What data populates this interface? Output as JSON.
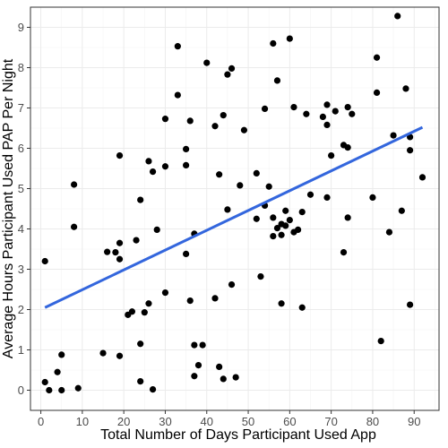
{
  "chart_data": {
    "type": "scatter",
    "title": "",
    "xlabel": "Total Number of Days Participant Used App",
    "ylabel": "Average Hours Participant Used PAP Per Night",
    "xlim": [
      -2.5,
      96
    ],
    "ylim": [
      -0.5,
      9.5
    ],
    "x_ticks": [
      0,
      10,
      20,
      30,
      40,
      50,
      60,
      70,
      80,
      90
    ],
    "y_ticks": [
      0,
      1,
      2,
      3,
      4,
      5,
      6,
      7,
      8,
      9
    ],
    "grid": true,
    "point_color": "#000000",
    "line_color": "#3366dd",
    "points": [
      [
        1,
        3.2
      ],
      [
        1,
        0.2
      ],
      [
        2,
        0
      ],
      [
        4,
        0.45
      ],
      [
        5,
        0.88
      ],
      [
        5,
        0
      ],
      [
        8,
        5.1
      ],
      [
        8,
        4.05
      ],
      [
        9,
        0.05
      ],
      [
        15,
        0.92
      ],
      [
        16,
        3.43
      ],
      [
        18,
        3.42
      ],
      [
        19,
        3.65
      ],
      [
        19,
        3.25
      ],
      [
        19,
        5.82
      ],
      [
        19,
        0.85
      ],
      [
        21,
        1.87
      ],
      [
        22,
        1.95
      ],
      [
        23,
        3.72
      ],
      [
        24,
        4.72
      ],
      [
        24,
        1.15
      ],
      [
        24,
        0.22
      ],
      [
        25,
        1.93
      ],
      [
        26,
        2.15
      ],
      [
        26,
        5.68
      ],
      [
        27,
        5.42
      ],
      [
        27,
        0.02
      ],
      [
        28,
        3.98
      ],
      [
        30,
        6.73
      ],
      [
        30,
        5.55
      ],
      [
        30,
        2.42
      ],
      [
        33,
        8.53
      ],
      [
        33,
        7.32
      ],
      [
        35,
        5.98
      ],
      [
        35,
        5.58
      ],
      [
        35,
        3.38
      ],
      [
        36,
        6.68
      ],
      [
        36,
        2.22
      ],
      [
        37,
        1.12
      ],
      [
        37,
        3.88
      ],
      [
        37,
        0.35
      ],
      [
        38,
        0.62
      ],
      [
        39,
        1.12
      ],
      [
        40,
        8.12
      ],
      [
        42,
        6.55
      ],
      [
        42,
        2.28
      ],
      [
        43,
        5.35
      ],
      [
        43,
        0.58
      ],
      [
        44,
        6.82
      ],
      [
        44,
        0.28
      ],
      [
        45,
        7.83
      ],
      [
        45,
        4.48
      ],
      [
        46,
        7.98
      ],
      [
        46,
        2.62
      ],
      [
        47,
        0.32
      ],
      [
        48,
        5.08
      ],
      [
        49,
        6.45
      ],
      [
        52,
        5.38
      ],
      [
        52,
        4.25
      ],
      [
        53,
        2.82
      ],
      [
        54,
        6.98
      ],
      [
        54,
        4.58
      ],
      [
        55,
        5.05
      ],
      [
        56,
        8.6
      ],
      [
        56,
        4.28
      ],
      [
        56,
        3.82
      ],
      [
        57,
        7.68
      ],
      [
        57,
        4.02
      ],
      [
        58,
        4.12
      ],
      [
        58,
        3.85
      ],
      [
        58,
        2.15
      ],
      [
        59,
        4.45
      ],
      [
        59,
        4.08
      ],
      [
        60,
        8.72
      ],
      [
        60,
        4.22
      ],
      [
        61,
        7.02
      ],
      [
        61,
        3.92
      ],
      [
        62,
        3.98
      ],
      [
        63,
        4.42
      ],
      [
        63,
        2.05
      ],
      [
        64,
        6.85
      ],
      [
        65,
        4.85
      ],
      [
        68,
        6.78
      ],
      [
        69,
        7.08
      ],
      [
        69,
        6.58
      ],
      [
        69,
        4.78
      ],
      [
        70,
        5.82
      ],
      [
        71,
        6.92
      ],
      [
        73,
        6.08
      ],
      [
        73,
        3.42
      ],
      [
        74,
        7.02
      ],
      [
        74,
        6.02
      ],
      [
        74,
        4.28
      ],
      [
        75,
        6.85
      ],
      [
        80,
        4.78
      ],
      [
        81,
        8.25
      ],
      [
        81,
        7.38
      ],
      [
        82,
        1.22
      ],
      [
        84,
        3.92
      ],
      [
        85,
        6.32
      ],
      [
        86,
        9.28
      ],
      [
        87,
        4.45
      ],
      [
        88,
        7.48
      ],
      [
        89,
        6.28
      ],
      [
        89,
        5.95
      ],
      [
        89,
        2.12
      ],
      [
        92,
        5.28
      ]
    ],
    "trend_line": {
      "x": [
        1,
        92
      ],
      "y": [
        2.05,
        6.52
      ]
    }
  }
}
